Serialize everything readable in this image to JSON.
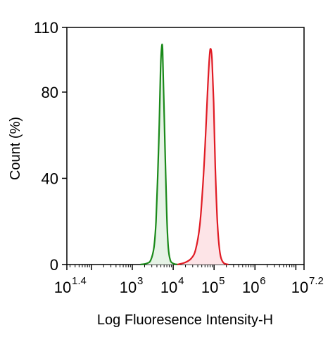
{
  "chart_data": {
    "type": "area",
    "title": "",
    "xlabel": "Log Fluoresence Intensity-H",
    "ylabel": "Count  (%)",
    "x_scale": "log10",
    "xlim": [
      1.4,
      7.2
    ],
    "ylim": [
      0,
      110
    ],
    "x_ticks": [
      {
        "base": "10",
        "exp": "1.4",
        "value": 1.4
      },
      {
        "base": "10",
        "exp": "3",
        "value": 3
      },
      {
        "base": "10",
        "exp": "4",
        "value": 4
      },
      {
        "base": "10",
        "exp": "5",
        "value": 5
      },
      {
        "base": "10",
        "exp": "6",
        "value": 6
      },
      {
        "base": "10",
        "exp": "7.2",
        "value": 7.2
      }
    ],
    "y_ticks": [
      "0",
      "40",
      "80",
      "110"
    ],
    "y_tick_values": [
      0,
      40,
      80,
      110
    ],
    "grid": false,
    "legend": "none",
    "series": [
      {
        "color": "#1a8a1a",
        "fill": "#e6f3e6",
        "points": [
          [
            3.2,
            0
          ],
          [
            3.35,
            0.5
          ],
          [
            3.45,
            2
          ],
          [
            3.53,
            8
          ],
          [
            3.58,
            20
          ],
          [
            3.62,
            40
          ],
          [
            3.66,
            65
          ],
          [
            3.69,
            90
          ],
          [
            3.72,
            101
          ],
          [
            3.74,
            100
          ],
          [
            3.76,
            85
          ],
          [
            3.8,
            55
          ],
          [
            3.84,
            25
          ],
          [
            3.88,
            8
          ],
          [
            3.93,
            2
          ],
          [
            4.0,
            0.5
          ],
          [
            4.1,
            0
          ]
        ]
      },
      {
        "color": "#e01b24",
        "fill": "#fde4e7",
        "points": [
          [
            4.1,
            0
          ],
          [
            4.3,
            1
          ],
          [
            4.45,
            3
          ],
          [
            4.55,
            7
          ],
          [
            4.65,
            18
          ],
          [
            4.72,
            35
          ],
          [
            4.78,
            55
          ],
          [
            4.84,
            80
          ],
          [
            4.89,
            97
          ],
          [
            4.92,
            100
          ],
          [
            4.95,
            95
          ],
          [
            4.99,
            75
          ],
          [
            5.03,
            45
          ],
          [
            5.08,
            20
          ],
          [
            5.14,
            6
          ],
          [
            5.22,
            1
          ],
          [
            5.35,
            0
          ]
        ]
      }
    ]
  }
}
